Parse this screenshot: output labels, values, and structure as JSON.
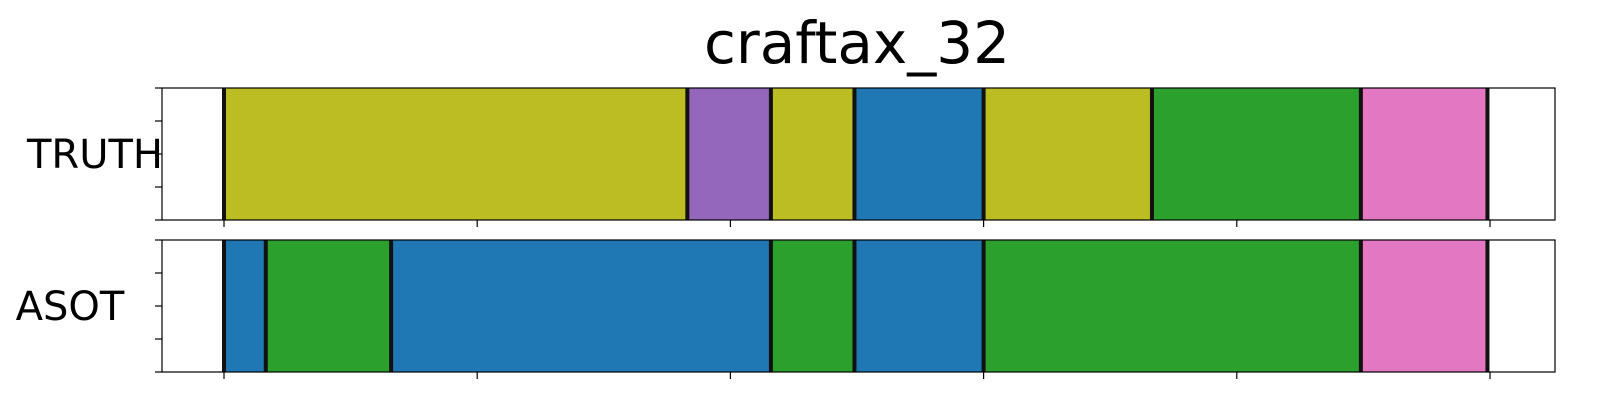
{
  "chart_data": {
    "type": "segmentation-timeline",
    "title": "craftax_32",
    "xlabel": "",
    "ylabel": "",
    "xlim": [
      0,
      1.1
    ],
    "x_tick_values": [
      0,
      0.2,
      0.4,
      0.6,
      0.8,
      1.0
    ],
    "boundary_color": "#111111",
    "rows": [
      {
        "label": "TRUTH",
        "segments": [
          {
            "start": 0.0,
            "end": 0.366,
            "color": "#bcbd22"
          },
          {
            "start": 0.366,
            "end": 0.432,
            "color": "#9467bd"
          },
          {
            "start": 0.432,
            "end": 0.498,
            "color": "#bcbd22"
          },
          {
            "start": 0.498,
            "end": 0.6,
            "color": "#1f77b4"
          },
          {
            "start": 0.6,
            "end": 0.733,
            "color": "#bcbd22"
          },
          {
            "start": 0.733,
            "end": 0.898,
            "color": "#2ca02c"
          },
          {
            "start": 0.898,
            "end": 0.998,
            "color": "#e377c2"
          }
        ]
      },
      {
        "label": "ASOT",
        "segments": [
          {
            "start": 0.0,
            "end": 0.033,
            "color": "#1f77b4"
          },
          {
            "start": 0.033,
            "end": 0.132,
            "color": "#2ca02c"
          },
          {
            "start": 0.132,
            "end": 0.432,
            "color": "#1f77b4"
          },
          {
            "start": 0.432,
            "end": 0.498,
            "color": "#2ca02c"
          },
          {
            "start": 0.498,
            "end": 0.6,
            "color": "#1f77b4"
          },
          {
            "start": 0.6,
            "end": 0.898,
            "color": "#2ca02c"
          },
          {
            "start": 0.898,
            "end": 0.998,
            "color": "#e377c2"
          }
        ]
      }
    ]
  }
}
